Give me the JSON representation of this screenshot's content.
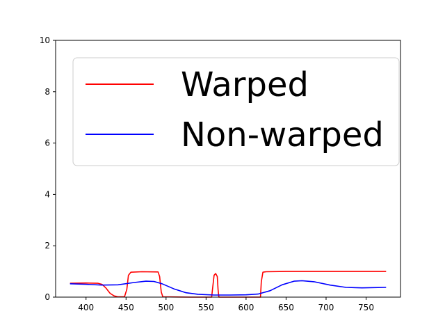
{
  "chart_data": {
    "type": "line",
    "xlim": [
      362,
      793
    ],
    "ylim": [
      0,
      10
    ],
    "x_ticks": [
      400,
      450,
      500,
      550,
      600,
      650,
      700,
      750
    ],
    "y_ticks": [
      0,
      2,
      4,
      6,
      8,
      10
    ],
    "x_tick_labels": [
      "400",
      "450",
      "500",
      "550",
      "600",
      "650",
      "700",
      "750"
    ],
    "y_tick_labels": [
      "0",
      "2",
      "4",
      "6",
      "8",
      "10"
    ],
    "grid": false,
    "legend_position": "upper-left",
    "series": [
      {
        "name": "Warped",
        "color": "#ff0000",
        "points": [
          [
            380,
            0.54
          ],
          [
            400,
            0.55
          ],
          [
            415,
            0.54
          ],
          [
            420,
            0.5
          ],
          [
            425,
            0.35
          ],
          [
            430,
            0.15
          ],
          [
            435,
            0.05
          ],
          [
            440,
            0.01
          ],
          [
            448,
            0.01
          ],
          [
            451,
            0.3
          ],
          [
            453,
            0.85
          ],
          [
            456,
            0.97
          ],
          [
            470,
            0.99
          ],
          [
            490,
            0.98
          ],
          [
            492,
            0.8
          ],
          [
            494,
            0.2
          ],
          [
            496,
            0.01
          ],
          [
            530,
            0.0
          ],
          [
            557,
            0.0
          ],
          [
            558,
            0.3
          ],
          [
            560,
            0.85
          ],
          [
            562,
            0.92
          ],
          [
            564,
            0.8
          ],
          [
            565,
            0.3
          ],
          [
            566,
            0.0
          ],
          [
            600,
            0.0
          ],
          [
            618,
            0.0
          ],
          [
            619,
            0.6
          ],
          [
            621,
            0.97
          ],
          [
            625,
            0.99
          ],
          [
            650,
            1.0
          ],
          [
            700,
            1.0
          ],
          [
            775,
            1.0
          ]
        ]
      },
      {
        "name": "Non-warped",
        "color": "#0000ff",
        "points": [
          [
            380,
            0.52
          ],
          [
            400,
            0.5
          ],
          [
            420,
            0.47
          ],
          [
            440,
            0.48
          ],
          [
            460,
            0.57
          ],
          [
            475,
            0.62
          ],
          [
            485,
            0.61
          ],
          [
            495,
            0.52
          ],
          [
            510,
            0.32
          ],
          [
            525,
            0.17
          ],
          [
            540,
            0.11
          ],
          [
            560,
            0.08
          ],
          [
            580,
            0.08
          ],
          [
            600,
            0.09
          ],
          [
            615,
            0.12
          ],
          [
            630,
            0.25
          ],
          [
            645,
            0.48
          ],
          [
            660,
            0.62
          ],
          [
            670,
            0.64
          ],
          [
            685,
            0.6
          ],
          [
            705,
            0.47
          ],
          [
            725,
            0.38
          ],
          [
            745,
            0.36
          ],
          [
            760,
            0.37
          ],
          [
            775,
            0.38
          ]
        ]
      }
    ]
  }
}
